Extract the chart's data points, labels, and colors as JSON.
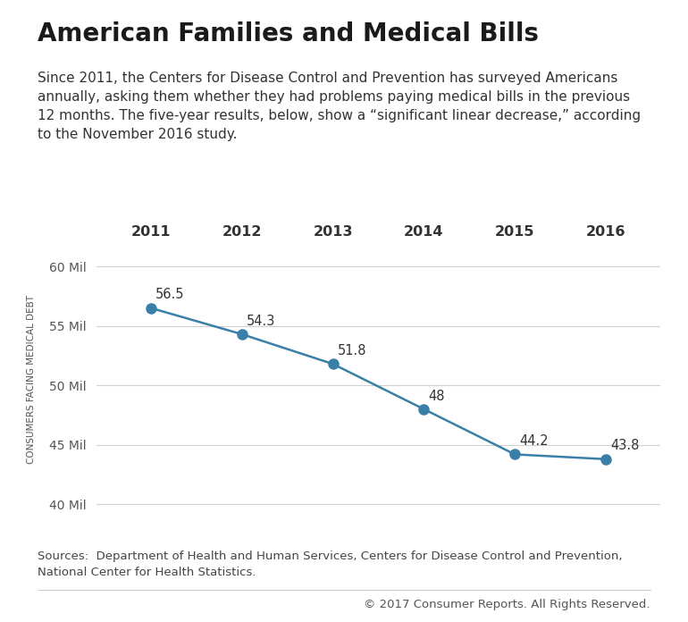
{
  "title": "American Families and Medical Bills",
  "subtitle": "Since 2011, the Centers for Disease Control and Prevention has surveyed Americans\nannually, asking them whether they had problems paying medical bills in the previous\n12 months. The five-year results, below, show a “significant linear decrease,” according\nto the November 2016 study.",
  "years": [
    2011,
    2012,
    2013,
    2014,
    2015,
    2016
  ],
  "values": [
    56.5,
    54.3,
    51.8,
    48.0,
    44.2,
    43.8
  ],
  "value_labels": [
    "56.5",
    "54.3",
    "51.8",
    "48",
    "44.2",
    "43.8"
  ],
  "ylabel": "CONSUMERS FACING MEDICAL DEBT",
  "yticks": [
    40,
    45,
    50,
    55,
    60
  ],
  "ytick_labels": [
    "40 Mil",
    "45 Mil",
    "50 Mil",
    "55 Mil",
    "60 Mil"
  ],
  "ylim": [
    39,
    62
  ],
  "xlim": [
    2010.4,
    2016.6
  ],
  "line_color": "#3a7fa8",
  "marker_color": "#3a7fa8",
  "marker_size": 8,
  "line_width": 1.8,
  "grid_color": "#d0d0d0",
  "background_color": "#ffffff",
  "source_text": "Sources:  Department of Health and Human Services, Centers for Disease Control and Prevention,\nNational Center for Health Statistics.",
  "copyright_text": "© 2017 Consumer Reports. All Rights Reserved.",
  "title_fontsize": 20,
  "subtitle_fontsize": 11,
  "annotation_fontsize": 10.5,
  "ylabel_fontsize": 7.5,
  "tick_fontsize": 10,
  "year_label_fontsize": 11.5,
  "source_fontsize": 9.5,
  "copyright_fontsize": 9.5
}
